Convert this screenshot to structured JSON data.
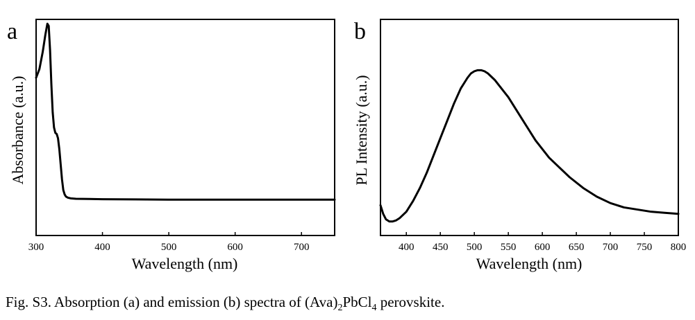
{
  "caption": {
    "prefix": "Fig. S3. Absorption (a) and emission (b) spectra of (Ava)",
    "sub1": "2",
    "mid": "PbCl",
    "sub2": "4",
    "suffix": " perovskite."
  },
  "chart_data": [
    {
      "type": "line",
      "panel_label": "a",
      "xlabel": "Wavelength (nm)",
      "ylabel": "Absorbance (a.u.)",
      "xlim": [
        300,
        750
      ],
      "ylim": [
        0,
        1
      ],
      "x_ticks": [
        300,
        400,
        500,
        600,
        700
      ],
      "show_y_ticks": false,
      "grid": false,
      "series": [
        {
          "x": [
            300,
            305,
            310,
            314,
            317,
            319,
            321,
            323,
            325,
            327,
            329,
            331,
            333,
            335,
            337,
            339,
            341,
            343,
            345,
            348,
            352,
            360,
            380,
            400,
            450,
            500,
            550,
            600,
            650,
            700,
            750
          ],
          "y": [
            0.73,
            0.77,
            0.85,
            0.93,
            0.98,
            0.97,
            0.86,
            0.7,
            0.57,
            0.5,
            0.475,
            0.47,
            0.45,
            0.4,
            0.33,
            0.26,
            0.21,
            0.19,
            0.18,
            0.175,
            0.172,
            0.17,
            0.169,
            0.168,
            0.167,
            0.166,
            0.166,
            0.166,
            0.166,
            0.166,
            0.166
          ]
        }
      ]
    },
    {
      "type": "line",
      "panel_label": "b",
      "xlabel": "Wavelength (nm)",
      "ylabel": "PL Intensity (a.u.)",
      "xlim": [
        362,
        800
      ],
      "ylim": [
        0,
        1
      ],
      "x_ticks": [
        400,
        450,
        500,
        550,
        600,
        650,
        700,
        750,
        800
      ],
      "show_y_ticks": false,
      "grid": false,
      "series": [
        {
          "x": [
            362,
            366,
            370,
            375,
            380,
            385,
            390,
            400,
            410,
            420,
            430,
            440,
            450,
            460,
            470,
            480,
            490,
            495,
            500,
            505,
            510,
            515,
            520,
            530,
            540,
            550,
            560,
            570,
            580,
            590,
            600,
            610,
            620,
            640,
            660,
            680,
            700,
            720,
            740,
            760,
            780,
            800
          ],
          "y": [
            0.14,
            0.1,
            0.075,
            0.065,
            0.065,
            0.07,
            0.08,
            0.11,
            0.16,
            0.22,
            0.29,
            0.37,
            0.45,
            0.53,
            0.61,
            0.68,
            0.73,
            0.75,
            0.76,
            0.765,
            0.765,
            0.76,
            0.75,
            0.72,
            0.68,
            0.64,
            0.59,
            0.54,
            0.49,
            0.44,
            0.4,
            0.36,
            0.33,
            0.27,
            0.22,
            0.18,
            0.15,
            0.13,
            0.12,
            0.11,
            0.105,
            0.1
          ]
        }
      ]
    }
  ]
}
